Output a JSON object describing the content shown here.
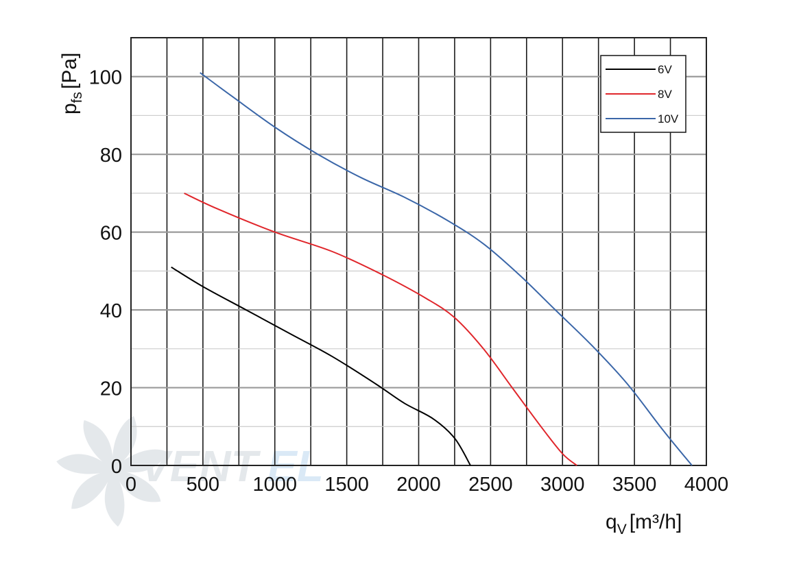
{
  "chart_data": {
    "type": "line",
    "title": "",
    "xlabel": {
      "main": "q",
      "sub": "V",
      "unit": "[m³/h]"
    },
    "ylabel": {
      "main": "p",
      "sub": "fs",
      "unit": "[Pa]"
    },
    "xlim": [
      0,
      4000
    ],
    "ylim": [
      0,
      110
    ],
    "x_ticks": [
      0,
      500,
      1000,
      1500,
      2000,
      2500,
      3000,
      3500,
      4000
    ],
    "y_ticks": [
      0,
      20,
      40,
      60,
      80,
      100
    ],
    "grid": true,
    "legend_position": "top-right",
    "series": [
      {
        "name": "6V",
        "color": "#000000",
        "points": [
          [
            280,
            51
          ],
          [
            500,
            46
          ],
          [
            800,
            40
          ],
          [
            1100,
            34
          ],
          [
            1400,
            28
          ],
          [
            1700,
            21
          ],
          [
            1900,
            16
          ],
          [
            2100,
            12
          ],
          [
            2250,
            7
          ],
          [
            2360,
            0
          ]
        ]
      },
      {
        "name": "8V",
        "color": "#e0262b",
        "points": [
          [
            370,
            70
          ],
          [
            600,
            66
          ],
          [
            1000,
            60
          ],
          [
            1400,
            55
          ],
          [
            1750,
            49
          ],
          [
            2050,
            43
          ],
          [
            2250,
            38
          ],
          [
            2450,
            30
          ],
          [
            2650,
            20
          ],
          [
            2850,
            10
          ],
          [
            3000,
            3
          ],
          [
            3100,
            0
          ]
        ]
      },
      {
        "name": "10V",
        "color": "#3a66a8",
        "points": [
          [
            480,
            101
          ],
          [
            700,
            95
          ],
          [
            1000,
            87
          ],
          [
            1300,
            80
          ],
          [
            1600,
            74
          ],
          [
            1900,
            69
          ],
          [
            2200,
            63
          ],
          [
            2450,
            57
          ],
          [
            2700,
            49
          ],
          [
            2950,
            40
          ],
          [
            3200,
            31
          ],
          [
            3450,
            21
          ],
          [
            3700,
            9
          ],
          [
            3900,
            0
          ]
        ]
      }
    ]
  },
  "watermark": {
    "text_a": "VENT",
    "text_b": "EL"
  }
}
